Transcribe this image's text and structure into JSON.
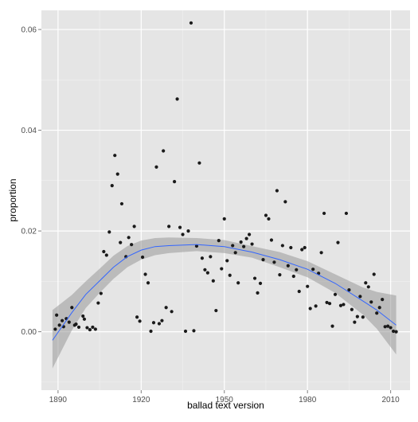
{
  "chart_data": {
    "type": "scatter",
    "title": "",
    "xlabel": "ballad text version",
    "ylabel": "proportion",
    "xlim": [
      1884,
      2017
    ],
    "ylim": [
      -0.0116,
      0.0638
    ],
    "x_ticks": [
      1890,
      1920,
      1950,
      1980,
      2010
    ],
    "y_ticks": [
      0.0,
      0.02,
      0.04,
      0.06
    ],
    "y_tick_labels": [
      "0.00",
      "0.02",
      "0.04",
      "0.06"
    ],
    "grid": true,
    "legend": "none",
    "colors": {
      "panel": "#e5e5e5",
      "grid_major": "#ffffff",
      "grid_minor": "#f2f2f2",
      "points": "#1a1a1a",
      "smooth_line": "#3366ff",
      "ribbon": "#999999"
    },
    "points": [
      [
        1889,
        0.0005
      ],
      [
        1889.5,
        0.0033
      ],
      [
        1890.5,
        0.0013
      ],
      [
        1891.5,
        0.0022
      ],
      [
        1892,
        0.001
      ],
      [
        1893,
        0.0026
      ],
      [
        1894,
        0.0019
      ],
      [
        1895,
        0.0048
      ],
      [
        1896,
        0.0013
      ],
      [
        1896.5,
        0.0015
      ],
      [
        1897.5,
        0.0009
      ],
      [
        1899,
        0.0031
      ],
      [
        1899.5,
        0.0025
      ],
      [
        1900.5,
        0.0008
      ],
      [
        1901.5,
        0.0004
      ],
      [
        1902.5,
        0.0009
      ],
      [
        1903.5,
        0.0005
      ],
      [
        1904.5,
        0.0057
      ],
      [
        1905.5,
        0.0076
      ],
      [
        1906.5,
        0.0159
      ],
      [
        1907.5,
        0.0152
      ],
      [
        1908.5,
        0.0198
      ],
      [
        1909.5,
        0.029
      ],
      [
        1910.5,
        0.035
      ],
      [
        1911.5,
        0.0313
      ],
      [
        1912.5,
        0.0177
      ],
      [
        1913,
        0.0254
      ],
      [
        1914.5,
        0.0149
      ],
      [
        1915.5,
        0.0187
      ],
      [
        1916.5,
        0.0173
      ],
      [
        1917.5,
        0.0209
      ],
      [
        1918.5,
        0.0029
      ],
      [
        1919.5,
        0.0021
      ],
      [
        1920.5,
        0.0148
      ],
      [
        1921.5,
        0.0114
      ],
      [
        1922.5,
        0.0097
      ],
      [
        1923.5,
        0.0001
      ],
      [
        1924.5,
        0.0018
      ],
      [
        1925.5,
        0.0327
      ],
      [
        1926.5,
        0.0016
      ],
      [
        1927.5,
        0.0022
      ],
      [
        1928,
        0.0359
      ],
      [
        1929,
        0.0048
      ],
      [
        1930,
        0.0209
      ],
      [
        1931,
        0.004
      ],
      [
        1932,
        0.0298
      ],
      [
        1933,
        0.0462
      ],
      [
        1934,
        0.0207
      ],
      [
        1935,
        0.0193
      ],
      [
        1936,
        0.0001
      ],
      [
        1937,
        0.02
      ],
      [
        1938,
        0.0613
      ],
      [
        1939,
        0.0002
      ],
      [
        1940,
        0.017
      ],
      [
        1941,
        0.0335
      ],
      [
        1942,
        0.0146
      ],
      [
        1943,
        0.0123
      ],
      [
        1944,
        0.0117
      ],
      [
        1945,
        0.0149
      ],
      [
        1946,
        0.0101
      ],
      [
        1947,
        0.0042
      ],
      [
        1948,
        0.0181
      ],
      [
        1949,
        0.0125
      ],
      [
        1950,
        0.0224
      ],
      [
        1951,
        0.0141
      ],
      [
        1952,
        0.0112
      ],
      [
        1953,
        0.0171
      ],
      [
        1954,
        0.0157
      ],
      [
        1955,
        0.0097
      ],
      [
        1956,
        0.0178
      ],
      [
        1957,
        0.0169
      ],
      [
        1958,
        0.0185
      ],
      [
        1959,
        0.0193
      ],
      [
        1960,
        0.0174
      ],
      [
        1961,
        0.0106
      ],
      [
        1962,
        0.0077
      ],
      [
        1963,
        0.0096
      ],
      [
        1964,
        0.0143
      ],
      [
        1965,
        0.0231
      ],
      [
        1966,
        0.0224
      ],
      [
        1967,
        0.0182
      ],
      [
        1968,
        0.0138
      ],
      [
        1969,
        0.028
      ],
      [
        1970,
        0.0113
      ],
      [
        1971,
        0.0171
      ],
      [
        1972,
        0.0258
      ],
      [
        1973,
        0.0131
      ],
      [
        1974,
        0.0167
      ],
      [
        1975,
        0.011
      ],
      [
        1976,
        0.0123
      ],
      [
        1977,
        0.008
      ],
      [
        1978,
        0.0163
      ],
      [
        1979,
        0.0167
      ],
      [
        1980,
        0.009
      ],
      [
        1981,
        0.0046
      ],
      [
        1982,
        0.0124
      ],
      [
        1983,
        0.0051
      ],
      [
        1984,
        0.0116
      ],
      [
        1985,
        0.0157
      ],
      [
        1986,
        0.0235
      ],
      [
        1987,
        0.0058
      ],
      [
        1988,
        0.0056
      ],
      [
        1989,
        0.0011
      ],
      [
        1990,
        0.0074
      ],
      [
        1991,
        0.0177
      ],
      [
        1992,
        0.0052
      ],
      [
        1993,
        0.0054
      ],
      [
        1994,
        0.0235
      ],
      [
        1995,
        0.0083
      ],
      [
        1996,
        0.0044
      ],
      [
        1997,
        0.0019
      ],
      [
        1998,
        0.003
      ],
      [
        1999,
        0.007
      ],
      [
        2000,
        0.0029
      ],
      [
        2001,
        0.0097
      ],
      [
        2002,
        0.0089
      ],
      [
        2003,
        0.0059
      ],
      [
        2004,
        0.0114
      ],
      [
        2005,
        0.0037
      ],
      [
        2006,
        0.0048
      ],
      [
        2007,
        0.0064
      ],
      [
        2008,
        0.001
      ],
      [
        2009,
        0.0011
      ],
      [
        2010,
        0.0008
      ],
      [
        2011,
        0.0001
      ],
      [
        2012,
        0.0
      ]
    ],
    "smooth": {
      "x": [
        1888,
        1895,
        1900,
        1905,
        1910,
        1915,
        1920,
        1925,
        1930,
        1940,
        1950,
        1960,
        1970,
        1980,
        1990,
        2000,
        2005,
        2012
      ],
      "y": [
        -0.0017,
        0.0038,
        0.0074,
        0.0101,
        0.0128,
        0.0149,
        0.0162,
        0.0169,
        0.0171,
        0.0173,
        0.0169,
        0.0158,
        0.0143,
        0.0124,
        0.0096,
        0.0061,
        0.0043,
        0.0013
      ],
      "lower": [
        -0.0073,
        0.0003,
        0.0047,
        0.0077,
        0.0105,
        0.0128,
        0.0143,
        0.0152,
        0.0156,
        0.016,
        0.0156,
        0.0147,
        0.0128,
        0.0108,
        0.0077,
        0.0034,
        0.0006,
        -0.0045
      ],
      "upper": [
        0.0043,
        0.0073,
        0.01,
        0.0125,
        0.0151,
        0.017,
        0.0181,
        0.0186,
        0.0187,
        0.0186,
        0.0182,
        0.017,
        0.0158,
        0.014,
        0.0114,
        0.0088,
        0.0079,
        0.0072
      ]
    }
  }
}
